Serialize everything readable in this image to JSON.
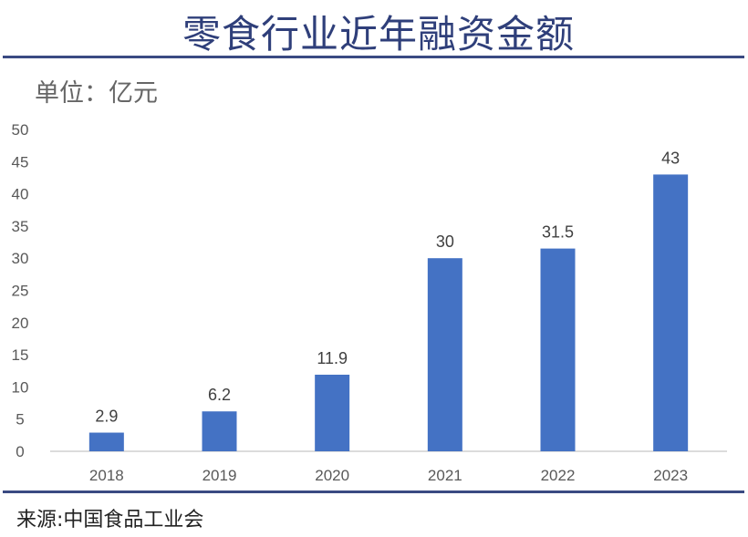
{
  "title": "零食行业近年融资金额",
  "unit": "单位：亿元",
  "source": "来源:中国食品工业会",
  "chart_data": {
    "type": "bar",
    "title": "零食行业近年融资金额",
    "ylabel": "单位：亿元",
    "xlabel": "",
    "categories": [
      "2018",
      "2019",
      "2020",
      "2021",
      "2022",
      "2023"
    ],
    "values": [
      2.9,
      6.2,
      11.9,
      30,
      31.5,
      43
    ],
    "ylim": [
      0,
      50
    ],
    "yticks": [
      0,
      5,
      10,
      15,
      20,
      25,
      30,
      35,
      40,
      45,
      50
    ],
    "grid": false,
    "bar_color": "#4472c4"
  }
}
